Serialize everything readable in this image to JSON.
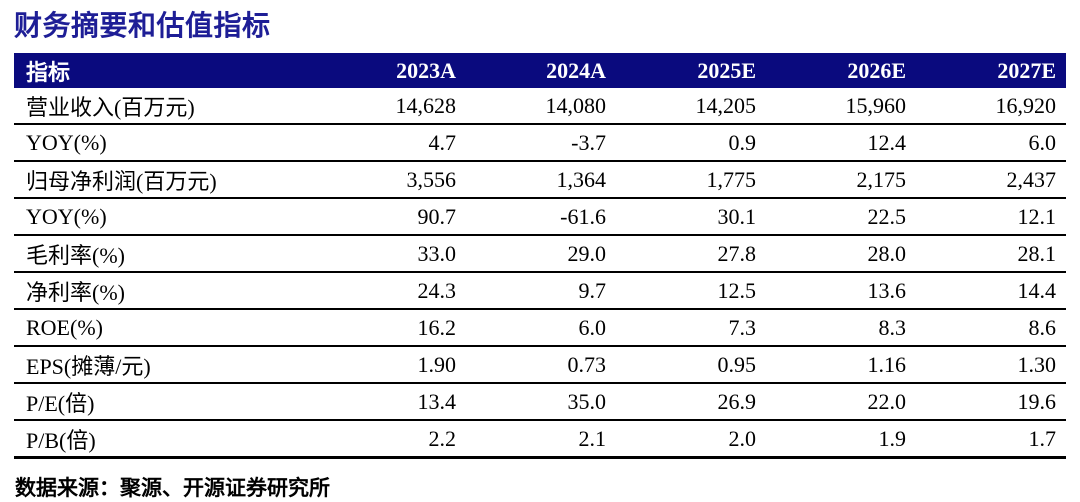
{
  "title": "财务摘要和估值指标",
  "colors": {
    "header_bg": "#0a0a7e",
    "title_text": "#1e1e96",
    "body_text": "#000000",
    "rule": "#000000"
  },
  "table": {
    "header": [
      "指标",
      "2023A",
      "2024A",
      "2025E",
      "2026E",
      "2027E"
    ],
    "rows": [
      {
        "label": "营业收入(百万元)",
        "values": [
          "14,628",
          "14,080",
          "14,205",
          "15,960",
          "16,920"
        ]
      },
      {
        "label": "YOY(%)",
        "values": [
          "4.7",
          "-3.7",
          "0.9",
          "12.4",
          "6.0"
        ]
      },
      {
        "label": "归母净利润(百万元)",
        "values": [
          "3,556",
          "1,364",
          "1,775",
          "2,175",
          "2,437"
        ]
      },
      {
        "label": "YOY(%)",
        "values": [
          "90.7",
          "-61.6",
          "30.1",
          "22.5",
          "12.1"
        ]
      },
      {
        "label": "毛利率(%)",
        "values": [
          "33.0",
          "29.0",
          "27.8",
          "28.0",
          "28.1"
        ]
      },
      {
        "label": "净利率(%)",
        "values": [
          "24.3",
          "9.7",
          "12.5",
          "13.6",
          "14.4"
        ]
      },
      {
        "label": "ROE(%)",
        "values": [
          "16.2",
          "6.0",
          "7.3",
          "8.3",
          "8.6"
        ]
      },
      {
        "label": "EPS(摊薄/元)",
        "values": [
          "1.90",
          "0.73",
          "0.95",
          "1.16",
          "1.30"
        ]
      },
      {
        "label": "P/E(倍)",
        "values": [
          "13.4",
          "35.0",
          "26.9",
          "22.0",
          "19.6"
        ]
      },
      {
        "label": "P/B(倍)",
        "values": [
          "2.2",
          "2.1",
          "2.0",
          "1.9",
          "1.7"
        ]
      }
    ]
  },
  "footer": {
    "source": "数据来源：聚源、开源证券研究所"
  }
}
